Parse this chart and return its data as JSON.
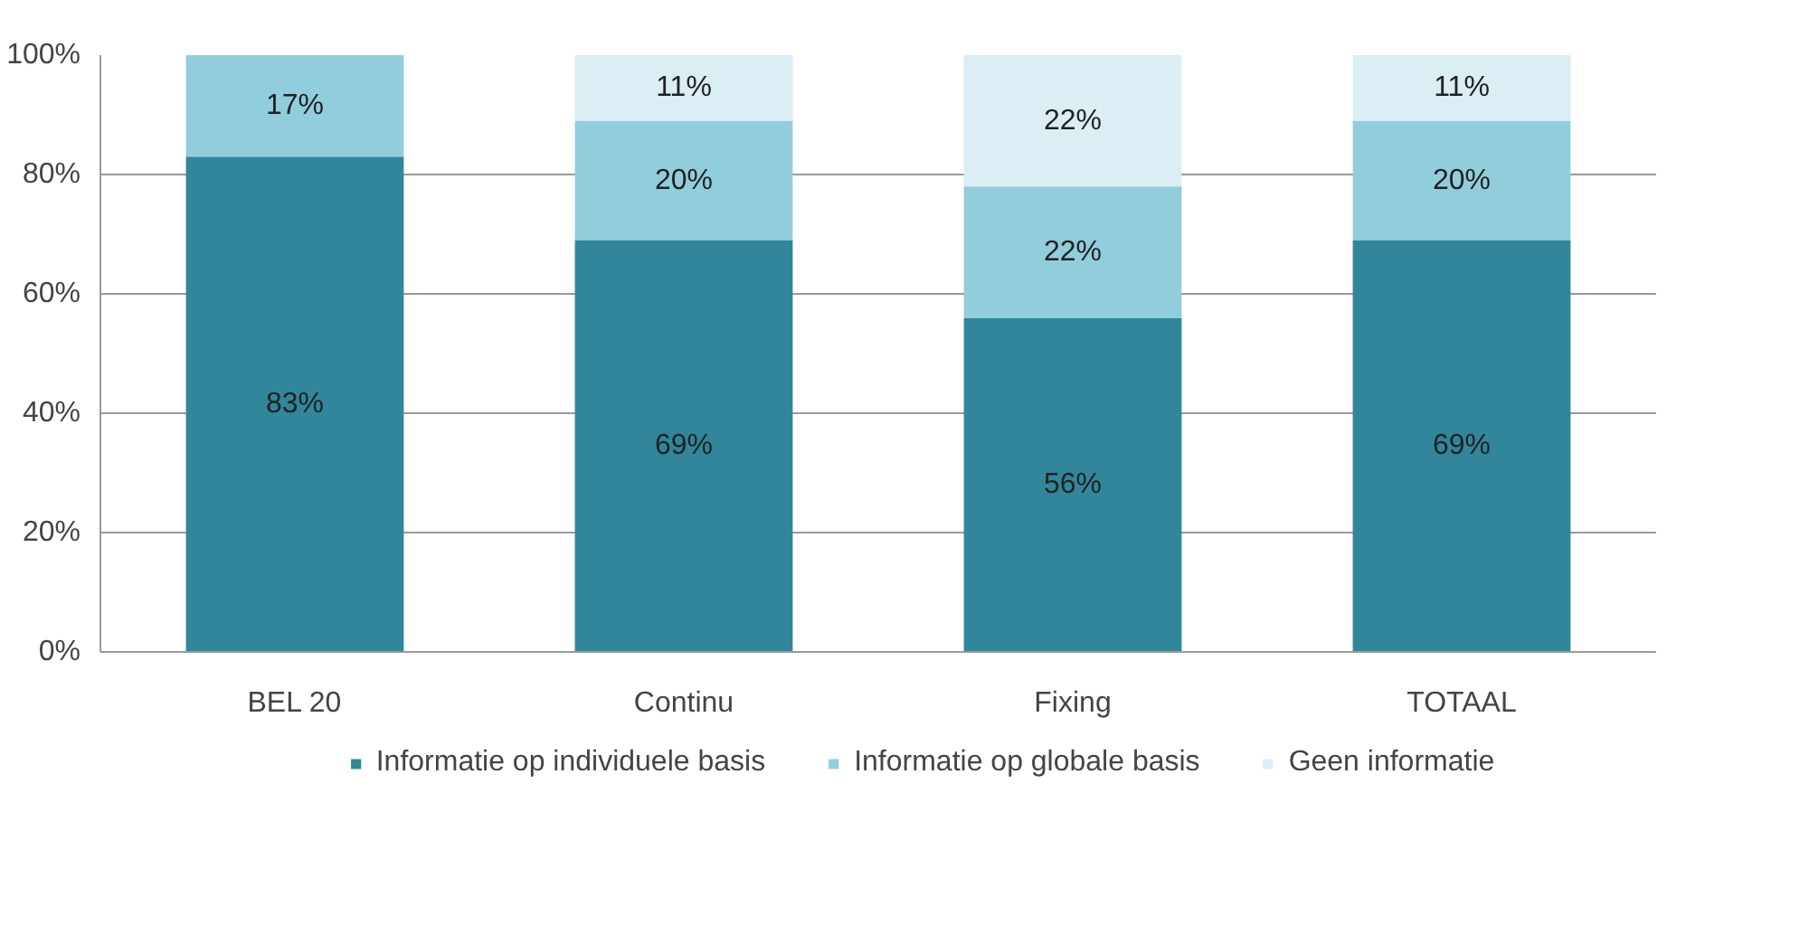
{
  "chart_data": {
    "type": "bar",
    "stacked": true,
    "categories": [
      "BEL 20",
      "Continu",
      "Fixing",
      "TOTAAL"
    ],
    "series": [
      {
        "name": "Informatie op individuele basis",
        "color": "#31869b",
        "values": [
          83,
          69,
          56,
          69
        ],
        "value_labels": [
          "83%",
          "69%",
          "56%",
          "69%"
        ]
      },
      {
        "name": "Informatie op globale basis",
        "color": "#92cddc",
        "values": [
          17,
          20,
          22,
          20
        ],
        "value_labels": [
          "17%",
          "20%",
          "22%",
          "20%"
        ]
      },
      {
        "name": "Geen informatie",
        "color": "#daeef3",
        "values": [
          null,
          11,
          22,
          11
        ],
        "value_labels": [
          null,
          "11%",
          "22%",
          "11%"
        ]
      }
    ],
    "ylim": [
      0,
      100
    ],
    "yticks": [
      {
        "value": 0,
        "label": "0%"
      },
      {
        "value": 20,
        "label": "20%"
      },
      {
        "value": 40,
        "label": "40%"
      },
      {
        "value": 60,
        "label": "60%"
      },
      {
        "value": 80,
        "label": "80%"
      },
      {
        "value": 100,
        "label": "100%"
      }
    ],
    "grid": "y",
    "legend": "bottom"
  }
}
